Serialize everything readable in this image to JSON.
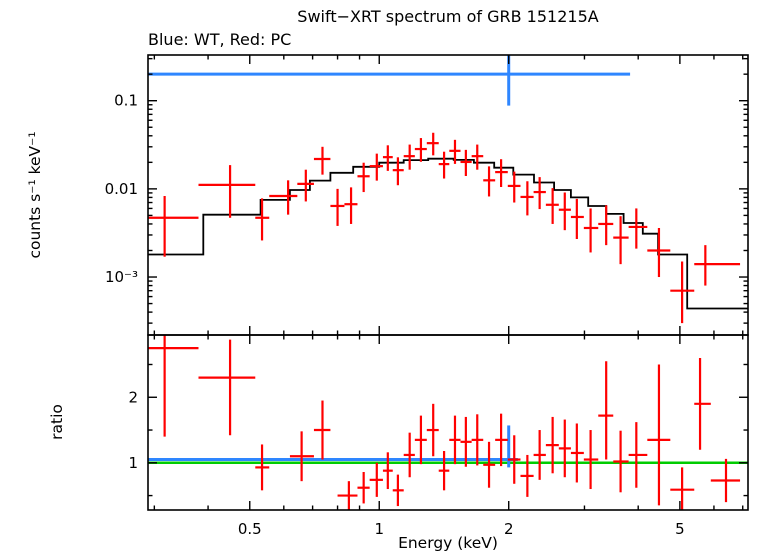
{
  "chart_data": {
    "type": "scatter",
    "title": "Swift−XRT spectrum of GRB 151215A",
    "subtitle": "Blue: WT, Red: PC",
    "xlabel": "Energy (keV)",
    "x_scale": "log",
    "x_range_keV": [
      0.29,
      7.2
    ],
    "x_major_ticks": [
      0.5,
      1,
      2,
      5
    ],
    "x_major_tick_labels": [
      "0.5",
      "1",
      "2",
      "5"
    ],
    "x_minor_ticks": [
      0.3,
      0.4,
      0.6,
      0.7,
      0.8,
      0.9,
      3,
      4,
      6,
      7
    ],
    "grid": "off",
    "legend": "none",
    "colors": {
      "pc": "#ff0000",
      "wt": "#2e86ff",
      "model": "#000000",
      "unity": "#00cc00"
    },
    "panels": [
      {
        "name": "spectrum",
        "ylabel": "counts s⁻¹ keV⁻¹",
        "y_scale": "log",
        "y_range": [
          0.00022,
          0.33
        ],
        "y_major_ticks": [
          0.001,
          0.01,
          0.1
        ],
        "y_major_tick_labels": [
          "10⁻³",
          "0.01",
          "0.1"
        ],
        "point_format": [
          "energy_keV",
          "e_min",
          "e_max",
          "value",
          "v_min",
          "v_max"
        ],
        "pc_points": [
          [
            0.317,
            0.29,
            0.38,
            0.0047,
            0.0017,
            0.0083
          ],
          [
            0.45,
            0.38,
            0.515,
            0.0111,
            0.0047,
            0.0186
          ],
          [
            0.534,
            0.515,
            0.555,
            0.0047,
            0.0026,
            0.0078
          ],
          [
            0.614,
            0.555,
            0.645,
            0.0083,
            0.0051,
            0.0125
          ],
          [
            0.675,
            0.645,
            0.705,
            0.0114,
            0.0072,
            0.0165
          ],
          [
            0.738,
            0.705,
            0.77,
            0.0218,
            0.0145,
            0.03
          ],
          [
            0.8,
            0.77,
            0.83,
            0.0064,
            0.0038,
            0.01
          ],
          [
            0.86,
            0.83,
            0.89,
            0.0067,
            0.004,
            0.0104
          ],
          [
            0.92,
            0.89,
            0.95,
            0.0139,
            0.0092,
            0.0198
          ],
          [
            0.987,
            0.95,
            1.02,
            0.0181,
            0.0124,
            0.0251
          ],
          [
            1.047,
            1.02,
            1.075,
            0.0229,
            0.016,
            0.0312
          ],
          [
            1.105,
            1.075,
            1.14,
            0.0163,
            0.011,
            0.0228
          ],
          [
            1.177,
            1.14,
            1.21,
            0.0235,
            0.0165,
            0.0318
          ],
          [
            1.25,
            1.21,
            1.29,
            0.0283,
            0.0203,
            0.0377
          ],
          [
            1.335,
            1.29,
            1.375,
            0.033,
            0.024,
            0.0433
          ],
          [
            1.415,
            1.375,
            1.455,
            0.0191,
            0.0131,
            0.0264
          ],
          [
            1.5,
            1.455,
            1.545,
            0.027,
            0.0192,
            0.036
          ],
          [
            1.59,
            1.545,
            1.64,
            0.0202,
            0.014,
            0.0277
          ],
          [
            1.69,
            1.64,
            1.745,
            0.0235,
            0.0165,
            0.0318
          ],
          [
            1.8,
            1.745,
            1.86,
            0.0125,
            0.0082,
            0.018
          ],
          [
            1.92,
            1.86,
            1.99,
            0.0155,
            0.0105,
            0.0217
          ],
          [
            2.06,
            1.99,
            2.13,
            0.0108,
            0.007,
            0.0157
          ],
          [
            2.21,
            2.13,
            2.285,
            0.0081,
            0.005,
            0.0122
          ],
          [
            2.36,
            2.285,
            2.44,
            0.0092,
            0.0059,
            0.0136
          ],
          [
            2.53,
            2.44,
            2.615,
            0.0066,
            0.004,
            0.0102
          ],
          [
            2.7,
            2.615,
            2.79,
            0.0058,
            0.0034,
            0.0091
          ],
          [
            2.88,
            2.79,
            2.99,
            0.0048,
            0.0027,
            0.0077
          ],
          [
            3.1,
            2.99,
            3.23,
            0.0036,
            0.0019,
            0.006
          ],
          [
            3.37,
            3.23,
            3.5,
            0.004,
            0.0023,
            0.0065
          ],
          [
            3.64,
            3.5,
            3.8,
            0.0028,
            0.0014,
            0.0049
          ],
          [
            3.96,
            3.8,
            4.2,
            0.0037,
            0.0021,
            0.006
          ],
          [
            4.47,
            4.2,
            4.75,
            0.002,
            0.001,
            0.0036
          ],
          [
            5.06,
            4.75,
            5.4,
            0.0007,
            0.0003,
            0.0015
          ],
          [
            5.73,
            5.4,
            6.9,
            0.0014,
            0.0008,
            0.0023
          ]
        ],
        "wt_point": {
          "e": 2.0,
          "e_min": 0.29,
          "e_max": 3.83,
          "value": 0.2,
          "v_min": 0.088,
          "v_max": 0.33
        },
        "model_steps_format": [
          "e_min",
          "e_max",
          "value"
        ],
        "model_steps": [
          [
            0.29,
            0.39,
            0.0018
          ],
          [
            0.39,
            0.53,
            0.0051
          ],
          [
            0.53,
            0.62,
            0.0075
          ],
          [
            0.62,
            0.69,
            0.0097
          ],
          [
            0.69,
            0.77,
            0.0124
          ],
          [
            0.77,
            0.87,
            0.0152
          ],
          [
            0.87,
            1.0,
            0.0178
          ],
          [
            1.0,
            1.14,
            0.0198
          ],
          [
            1.14,
            1.3,
            0.0212
          ],
          [
            1.3,
            1.49,
            0.022
          ],
          [
            1.49,
            1.66,
            0.0213
          ],
          [
            1.66,
            1.85,
            0.0198
          ],
          [
            1.85,
            2.05,
            0.0174
          ],
          [
            2.05,
            2.29,
            0.0145
          ],
          [
            2.29,
            2.55,
            0.0118
          ],
          [
            2.55,
            2.79,
            0.0097
          ],
          [
            2.79,
            3.06,
            0.008
          ],
          [
            3.06,
            3.37,
            0.0064
          ],
          [
            3.37,
            3.7,
            0.0052
          ],
          [
            3.7,
            4.1,
            0.0041
          ],
          [
            4.1,
            4.45,
            0.0031
          ],
          [
            4.45,
            5.2,
            0.0018
          ],
          [
            5.2,
            7.2,
            0.00044
          ]
        ]
      },
      {
        "name": "ratio",
        "ylabel": "ratio",
        "y_scale": "linear",
        "y_range": [
          0.28,
          2.95
        ],
        "y_major_ticks": [
          1,
          2
        ],
        "y_major_tick_labels": [
          "1",
          "2"
        ],
        "y_minor_ticks": [
          0.5,
          1.5,
          2.5
        ],
        "unity_line": 1.0,
        "point_format": [
          "energy_keV",
          "e_min",
          "e_max",
          "ratio",
          "r_min",
          "r_max"
        ],
        "pc_points": [
          [
            0.317,
            0.29,
            0.38,
            2.75,
            1.4,
            3.6
          ],
          [
            0.45,
            0.38,
            0.515,
            2.3,
            1.42,
            2.88
          ],
          [
            0.534,
            0.515,
            0.555,
            0.93,
            0.58,
            1.28
          ],
          [
            0.66,
            0.62,
            0.705,
            1.1,
            0.72,
            1.48
          ],
          [
            0.738,
            0.705,
            0.77,
            1.5,
            1.05,
            1.95
          ],
          [
            0.85,
            0.8,
            0.89,
            0.5,
            0.28,
            0.72
          ],
          [
            0.92,
            0.89,
            0.95,
            0.62,
            0.38,
            0.86
          ],
          [
            0.987,
            0.95,
            1.02,
            0.74,
            0.48,
            1.0
          ],
          [
            1.047,
            1.02,
            1.075,
            0.88,
            0.6,
            1.16
          ],
          [
            1.105,
            1.075,
            1.14,
            0.58,
            0.34,
            0.82
          ],
          [
            1.177,
            1.14,
            1.21,
            1.12,
            0.78,
            1.46
          ],
          [
            1.25,
            1.21,
            1.29,
            1.35,
            0.98,
            1.72
          ],
          [
            1.335,
            1.29,
            1.375,
            1.5,
            1.1,
            1.9
          ],
          [
            1.415,
            1.375,
            1.455,
            0.88,
            0.58,
            1.18
          ],
          [
            1.5,
            1.455,
            1.545,
            1.35,
            0.98,
            1.72
          ],
          [
            1.59,
            1.545,
            1.64,
            1.32,
            0.94,
            1.7
          ],
          [
            1.69,
            1.64,
            1.745,
            1.35,
            0.96,
            1.74
          ],
          [
            1.8,
            1.745,
            1.86,
            0.97,
            0.62,
            1.32
          ],
          [
            1.92,
            1.86,
            1.99,
            1.35,
            0.95,
            1.75
          ],
          [
            2.06,
            1.99,
            2.13,
            1.05,
            0.68,
            1.42
          ],
          [
            2.21,
            2.13,
            2.285,
            0.8,
            0.48,
            1.12
          ],
          [
            2.36,
            2.285,
            2.44,
            1.12,
            0.74,
            1.5
          ],
          [
            2.53,
            2.44,
            2.615,
            1.27,
            0.84,
            1.7
          ],
          [
            2.7,
            2.615,
            2.79,
            1.22,
            0.78,
            1.66
          ],
          [
            2.88,
            2.79,
            2.99,
            1.15,
            0.7,
            1.6
          ],
          [
            3.1,
            2.99,
            3.23,
            1.05,
            0.6,
            1.5
          ],
          [
            3.37,
            3.23,
            3.5,
            1.72,
            1.05,
            2.55
          ],
          [
            3.64,
            3.5,
            3.8,
            1.02,
            0.55,
            1.49
          ],
          [
            3.96,
            3.8,
            4.2,
            1.12,
            0.62,
            1.62
          ],
          [
            4.47,
            4.2,
            4.75,
            1.35,
            0.35,
            2.5
          ],
          [
            5.06,
            4.75,
            5.4,
            0.59,
            0.25,
            0.93
          ],
          [
            5.57,
            5.4,
            5.9,
            1.9,
            1.2,
            2.6
          ],
          [
            6.4,
            5.9,
            6.9,
            0.73,
            0.4,
            1.06
          ]
        ],
        "wt_line": {
          "value": 1.05,
          "e_min": 0.29,
          "e_max": 2.1
        },
        "wt_point": {
          "e": 2.0,
          "r": 1.07,
          "r_min": 0.93,
          "r_max": 1.57
        }
      }
    ]
  }
}
